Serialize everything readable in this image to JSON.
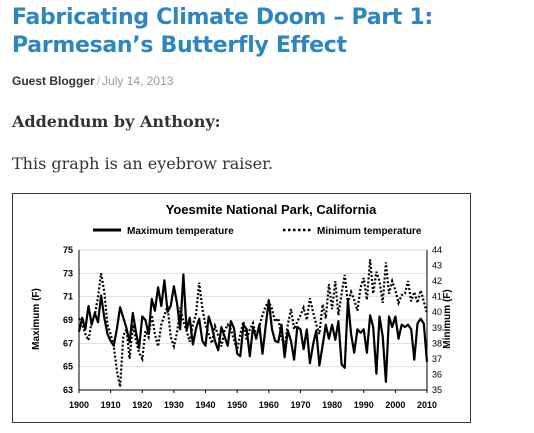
{
  "post": {
    "title": "Fabricating Climate Doom – Part 1: Parmesan’s Butterfly Effect",
    "author": "Guest Blogger",
    "separator": "/",
    "date": "July 14, 2013",
    "addendum": "Addendum by Anthony:",
    "paragraph": "This graph is an eyebrow raiser."
  },
  "chart_data": {
    "type": "line",
    "title": "Yoesmite National Park, California",
    "xlabel": "",
    "ylabel": "Maximum (F)",
    "y2label": "Minimum (F)",
    "xlim": [
      1900,
      2010
    ],
    "ylim": [
      63,
      75
    ],
    "y2lim": [
      35,
      44
    ],
    "x_ticks": [
      1900,
      1910,
      1920,
      1930,
      1940,
      1950,
      1960,
      1970,
      1980,
      1990,
      2000,
      2010
    ],
    "y_ticks": [
      63,
      65,
      67,
      69,
      71,
      73,
      75
    ],
    "y2_ticks": [
      35,
      36,
      37,
      38,
      39,
      40,
      41,
      42,
      43,
      44
    ],
    "legend_position": "top",
    "grid": "horizontal",
    "series": [
      {
        "name": "Maximum temperature",
        "axis": "left",
        "style": "solid",
        "x": [
          1900,
          1901,
          1902,
          1903,
          1904,
          1905,
          1906,
          1907,
          1908,
          1909,
          1910,
          1911,
          1912,
          1913,
          1914,
          1915,
          1916,
          1917,
          1918,
          1919,
          1920,
          1921,
          1922,
          1923,
          1924,
          1925,
          1926,
          1927,
          1928,
          1929,
          1930,
          1931,
          1932,
          1933,
          1934,
          1935,
          1936,
          1937,
          1938,
          1939,
          1940,
          1941,
          1942,
          1943,
          1944,
          1945,
          1946,
          1947,
          1948,
          1949,
          1950,
          1951,
          1952,
          1953,
          1954,
          1955,
          1956,
          1957,
          1958,
          1959,
          1960,
          1961,
          1962,
          1963,
          1964,
          1965,
          1966,
          1967,
          1968,
          1969,
          1970,
          1971,
          1972,
          1973,
          1974,
          1975,
          1976,
          1977,
          1978,
          1979,
          1980,
          1981,
          1982,
          1983,
          1984,
          1985,
          1986,
          1987,
          1988,
          1989,
          1990,
          1991,
          1992,
          1993,
          1994,
          1995,
          1996,
          1997,
          1998,
          1999,
          2000,
          2001,
          2002,
          2003,
          2004,
          2005,
          2006,
          2007,
          2008,
          2009,
          2010
        ],
        "values": [
          68.0,
          69.2,
          68.2,
          70.2,
          68.6,
          69.6,
          68.8,
          71.1,
          69.2,
          67.8,
          67.2,
          66.8,
          68.3,
          70.1,
          69.2,
          68.3,
          67.1,
          69.6,
          68.0,
          66.6,
          69.3,
          69.0,
          67.8,
          70.8,
          69.8,
          71.8,
          70.2,
          72.4,
          69.7,
          70.2,
          71.9,
          70.4,
          68.2,
          72.9,
          68.1,
          69.2,
          66.9,
          68.3,
          69.1,
          67.2,
          66.8,
          69.3,
          68.4,
          67.2,
          66.4,
          68.4,
          67.6,
          66.8,
          68.9,
          68.3,
          66.1,
          65.9,
          68.6,
          68.2,
          65.9,
          68.4,
          67.4,
          68.6,
          66.1,
          68.5,
          70.7,
          68.2,
          67.2,
          67.1,
          68.6,
          65.8,
          68.1,
          67.2,
          65.6,
          68.4,
          68.2,
          66.5,
          68.2,
          65.3,
          66.9,
          68.1,
          65.1,
          66.8,
          68.6,
          67.4,
          68.6,
          67.3,
          68.9,
          65.2,
          64.9,
          70.7,
          67.8,
          66.2,
          68.2,
          67.9,
          68.2,
          66.2,
          69.4,
          68.4,
          64.4,
          69.3,
          67.6,
          63.7,
          69.3,
          68.4,
          69.3,
          67.4,
          68.6,
          68.4,
          68.6,
          68.2,
          65.6,
          68.7,
          69.1,
          68.7,
          65.4
        ]
      },
      {
        "name": "Minimum temperature",
        "axis": "right",
        "style": "dotted",
        "x": [
          1900,
          1901,
          1902,
          1903,
          1904,
          1905,
          1906,
          1907,
          1908,
          1909,
          1910,
          1911,
          1912,
          1913,
          1914,
          1915,
          1916,
          1917,
          1918,
          1919,
          1920,
          1921,
          1922,
          1923,
          1924,
          1925,
          1926,
          1927,
          1928,
          1929,
          1930,
          1931,
          1932,
          1933,
          1934,
          1935,
          1936,
          1937,
          1938,
          1939,
          1940,
          1941,
          1942,
          1943,
          1944,
          1945,
          1946,
          1947,
          1948,
          1949,
          1950,
          1951,
          1952,
          1953,
          1954,
          1955,
          1956,
          1957,
          1958,
          1959,
          1960,
          1961,
          1962,
          1963,
          1964,
          1965,
          1966,
          1967,
          1968,
          1969,
          1970,
          1971,
          1972,
          1973,
          1974,
          1975,
          1976,
          1977,
          1978,
          1979,
          1980,
          1981,
          1982,
          1983,
          1984,
          1985,
          1986,
          1987,
          1988,
          1989,
          1990,
          1991,
          1992,
          1993,
          1994,
          1995,
          1996,
          1997,
          1998,
          1999,
          2000,
          2001,
          2002,
          2003,
          2004,
          2005,
          2006,
          2007,
          2008,
          2009,
          2010
        ],
        "values": [
          39.6,
          39.2,
          38.6,
          38.2,
          39.4,
          39.8,
          41.0,
          42.5,
          41.3,
          39.2,
          38.6,
          37.8,
          36.2,
          35.2,
          38.5,
          38.9,
          37.0,
          39.2,
          38.2,
          37.4,
          37.0,
          38.8,
          38.4,
          39.8,
          38.6,
          37.8,
          39.2,
          39.8,
          40.4,
          38.4,
          37.8,
          38.7,
          40.3,
          39.4,
          38.8,
          38.1,
          39.2,
          39.9,
          41.9,
          40.2,
          39.2,
          38.6,
          38.0,
          39.1,
          38.5,
          37.8,
          38.8,
          39.2,
          38.9,
          38.2,
          37.6,
          38.6,
          39.4,
          38.2,
          38.9,
          39.3,
          38.4,
          39.1,
          39.8,
          40.4,
          40.7,
          40.2,
          39.4,
          39.6,
          38.4,
          37.8,
          39.2,
          40.2,
          38.9,
          39.4,
          39.8,
          40.3,
          39.5,
          40.9,
          40.0,
          39.2,
          38.6,
          40.5,
          39.6,
          41.8,
          40.2,
          42.0,
          39.8,
          41.2,
          42.4,
          40.6,
          41.3,
          40.8,
          40.1,
          41.6,
          42.2,
          40.8,
          43.4,
          41.2,
          42.6,
          42.0,
          40.6,
          43.2,
          41.2,
          42.0,
          41.4,
          40.6,
          41.1,
          41.2,
          42.0,
          40.7,
          41.3,
          40.6,
          41.4,
          40.7,
          39.9
        ]
      }
    ]
  }
}
